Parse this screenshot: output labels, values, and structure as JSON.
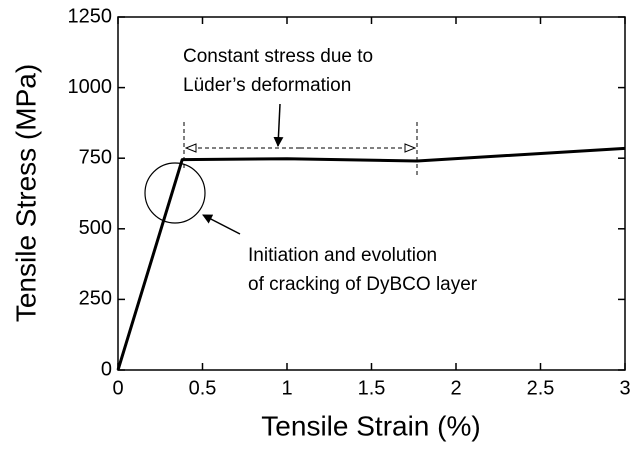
{
  "chart_data": {
    "type": "line",
    "xlabel": "Tensile Strain (%)",
    "ylabel": "Tensile Stress (MPa)",
    "annotations": [
      "Constant stress due to",
      "Lüder’s deformation",
      "Initiation and evolution",
      "of cracking of DyBCO layer"
    ],
    "x": [
      0,
      0.38,
      1.0,
      1.77,
      3.0
    ],
    "series": [
      {
        "color": "#000000",
        "values": [
          0,
          745,
          748,
          740,
          785
        ]
      }
    ],
    "xlim": [
      0,
      3
    ],
    "xticks": [
      0,
      0.5,
      1,
      1.5,
      2,
      2.5,
      3
    ],
    "ylim": [
      0,
      1250
    ],
    "yticks": [
      0,
      250,
      500,
      750,
      1000,
      1250
    ]
  }
}
